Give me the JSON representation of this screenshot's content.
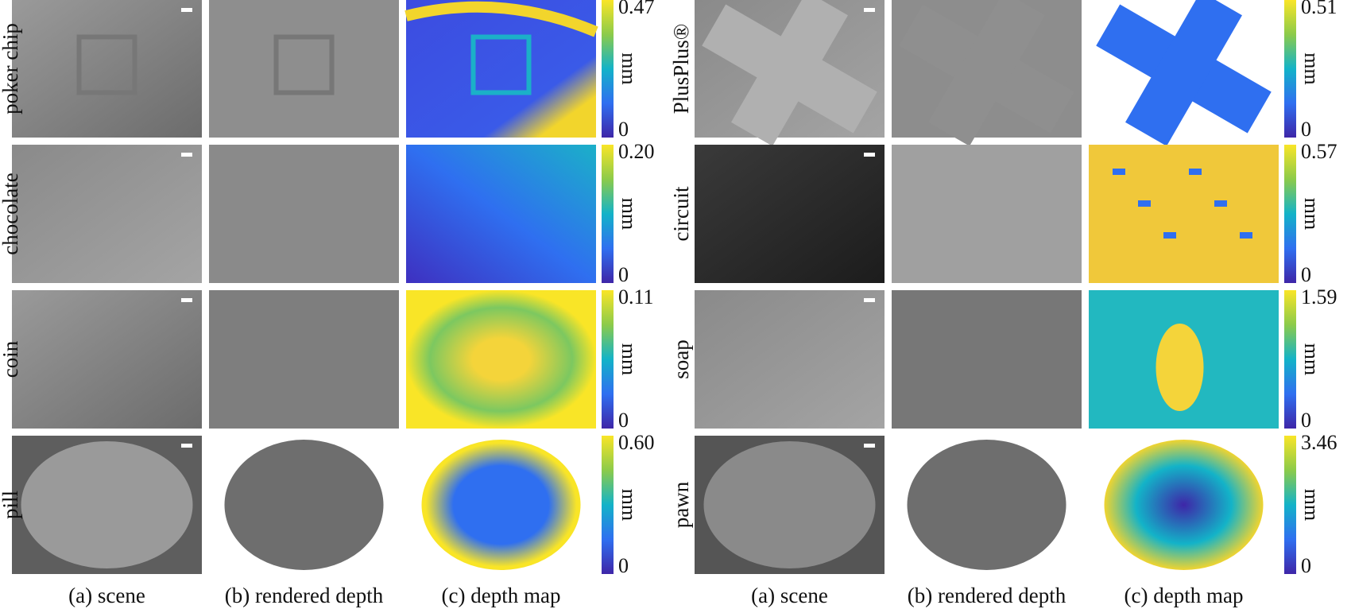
{
  "panels": [
    {
      "rows": [
        {
          "label": "poker chip",
          "max": "0.47",
          "min": "0",
          "unit": "mm"
        },
        {
          "label": "chocolate",
          "max": "0.20",
          "min": "0",
          "unit": "mm"
        },
        {
          "label": "coin",
          "max": "0.11",
          "min": "0",
          "unit": "mm"
        },
        {
          "label": "pill",
          "max": "0.60",
          "min": "0",
          "unit": "mm"
        }
      ],
      "captions": [
        "(a) scene",
        "(b) rendered depth",
        "(c) depth map"
      ]
    },
    {
      "rows": [
        {
          "label": "PlusPlus®",
          "max": "0.51",
          "min": "0",
          "unit": "mm"
        },
        {
          "label": "circuit",
          "max": "0.57",
          "min": "0",
          "unit": "mm"
        },
        {
          "label": "soap",
          "max": "1.59",
          "min": "0",
          "unit": "mm"
        },
        {
          "label": "pawn",
          "max": "3.46",
          "min": "0",
          "unit": "mm"
        }
      ],
      "captions": [
        "(a) scene",
        "(b) rendered depth",
        "(c) depth map"
      ]
    }
  ]
}
